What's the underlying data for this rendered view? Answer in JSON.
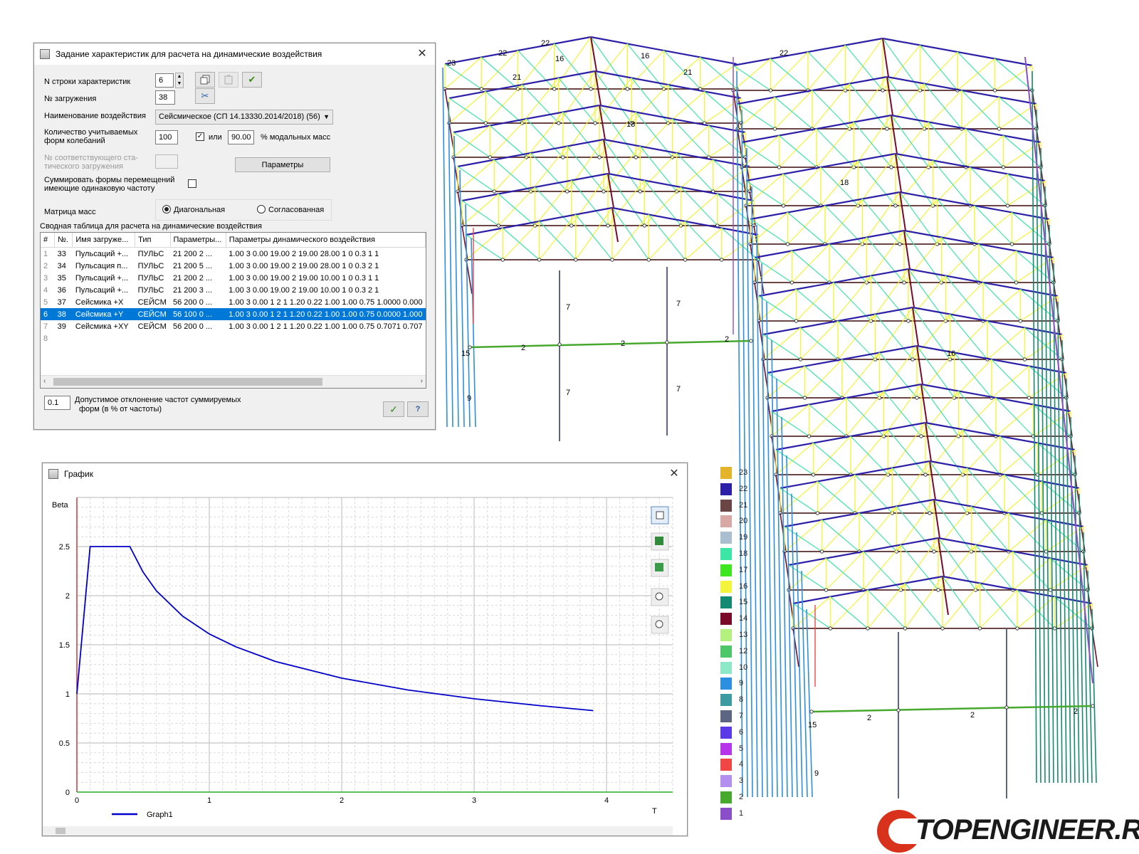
{
  "dialog": {
    "title": "Задание характеристик для расчета на динамические воздействия",
    "close_glyph": "✕",
    "row_label": "N строки характеристик",
    "row_value": "6",
    "load_label": "№ загружения",
    "load_value": "38",
    "effect_label": "Наименование воздействия",
    "effect_value": "Сейсмическое (СП 14.13330.2014/2018) (56)",
    "modes_label_1": "Количество учитываемых",
    "modes_label_2": "форм колебаний",
    "modes_value": "100",
    "or_checked": true,
    "or_label": "или",
    "modal_mass_value": "90.00",
    "modal_mass_label": "% модальных масс",
    "static_label_1": "№ соответствующего ста-",
    "static_label_2": "тического загружения",
    "static_value": "",
    "params_button": "Параметры",
    "sum_label_1": "Суммировать формы перемещений",
    "sum_label_2": "имеющие одинаковую частоту",
    "sum_checked": false,
    "mass_matrix_label": "Матрица масс",
    "radio_diagonal": "Диагональная",
    "radio_consistent": "Согласованная",
    "mass_matrix_selected": "diagonal",
    "table_caption": "Сводная таблица для расчета на динамические воздействия",
    "columns": [
      "#",
      "№.",
      "Имя загруже...",
      "Тип",
      "Параметры...",
      "Параметры динамического воздействия"
    ],
    "rows": [
      {
        "n": "1",
        "no": "33",
        "name": "Пульсаций +...",
        "type": "ПУЛЬС",
        "params": "21  200 2  ...",
        "dyn": "1.00 3 0.00 19.00 2 19.00 28.00 1 0 0.3 1 1"
      },
      {
        "n": "2",
        "no": "34",
        "name": "Пульсация п...",
        "type": "ПУЛЬС",
        "params": "21  200 5  ...",
        "dyn": "1.00 3 0.00 19.00 2 19.00 28.00 1 0 0.3 2 1"
      },
      {
        "n": "3",
        "no": "35",
        "name": "Пульсаций +...",
        "type": "ПУЛЬС",
        "params": "21  200 2  ...",
        "dyn": "1.00 3 0.00 19.00 2 19.00 10.00 1 0 0.3 1 1"
      },
      {
        "n": "4",
        "no": "36",
        "name": "Пульсаций +...",
        "type": "ПУЛЬС",
        "params": "21  200 3  ...",
        "dyn": "1.00 3 0.00 19.00 2 19.00 10.00 1 0 0.3 2 1"
      },
      {
        "n": "5",
        "no": "37",
        "name": "Сейсмика +X",
        "type": "СЕЙСМ",
        "params": "56  200 0  ...",
        "dyn": "1.00 3 0.00 1 2 1 1.20 0.22 1.00 1.00 0.75 1.0000 0.000"
      },
      {
        "n": "6",
        "no": "38",
        "name": "Сейсмика +Y",
        "type": "СЕЙСМ",
        "params": "56  100 0  ...",
        "dyn": "1.00 3 0.00 1 2 1 1.20 0.22 1.00 1.00 0.75 0.0000 1.000"
      },
      {
        "n": "7",
        "no": "39",
        "name": "Сейсмика +XY",
        "type": "СЕЙСМ",
        "params": "56  200 0  ...",
        "dyn": "1.00 3 0.00 1 2 1 1.20 0.22 1.00 1.00 0.75 0.7071 0.707"
      },
      {
        "n": "8",
        "no": "",
        "name": "",
        "type": "",
        "params": "",
        "dyn": ""
      }
    ],
    "selected_row": 5,
    "tolerance_value": "0.1",
    "tolerance_label_1": "Допустимое отклонение частот суммируемых",
    "tolerance_label_2": "форм (в % от частоты)",
    "ok_glyph": "✓",
    "help_glyph": "?"
  },
  "graph_window": {
    "title": "График",
    "close_glyph": "✕"
  },
  "chart_data": {
    "type": "line",
    "title": "",
    "ylabel": "Beta",
    "xlabel": "T",
    "xlim": [
      0,
      4.5
    ],
    "ylim": [
      0,
      3.0
    ],
    "x_ticks": [
      "0",
      "1",
      "2",
      "3",
      "4"
    ],
    "y_ticks": [
      "0",
      "0.5",
      "1",
      "1.5",
      "2",
      "2.5"
    ],
    "grid": true,
    "legend_position": "bottom-left",
    "series": [
      {
        "name": "Graph1",
        "color": "#0000c8",
        "x": [
          0,
          0.1,
          0.4,
          0.5,
          0.6,
          0.8,
          1.0,
          1.2,
          1.5,
          2.0,
          2.5,
          3.0,
          3.5,
          3.9
        ],
        "y": [
          1.0,
          2.5,
          2.5,
          2.24,
          2.05,
          1.79,
          1.61,
          1.48,
          1.33,
          1.16,
          1.04,
          0.95,
          0.88,
          0.83
        ]
      }
    ]
  },
  "legend": [
    {
      "label": "23",
      "color": "#e3b42a"
    },
    {
      "label": "22",
      "color": "#2c1fa8"
    },
    {
      "label": "21",
      "color": "#6b4545"
    },
    {
      "label": "20",
      "color": "#d7a8a4"
    },
    {
      "label": "19",
      "color": "#a9bfd0"
    },
    {
      "label": "18",
      "color": "#3ee6a5"
    },
    {
      "label": "17",
      "color": "#3de61f"
    },
    {
      "label": "16",
      "color": "#f4f43c"
    },
    {
      "label": "15",
      "color": "#148a73"
    },
    {
      "label": "14",
      "color": "#7a0a2a"
    },
    {
      "label": "13",
      "color": "#b4f07e"
    },
    {
      "label": "12",
      "color": "#4ec76b"
    },
    {
      "label": "10",
      "color": "#8de8c7"
    },
    {
      "label": "9",
      "color": "#2d8fe0"
    },
    {
      "label": "8",
      "color": "#3c9aa0"
    },
    {
      "label": "7",
      "color": "#5c6582"
    },
    {
      "label": "6",
      "color": "#5b3ae8"
    },
    {
      "label": "5",
      "color": "#b735e8"
    },
    {
      "label": "4",
      "color": "#f04646"
    },
    {
      "label": "3",
      "color": "#b38ff0"
    },
    {
      "label": "2",
      "color": "#47a82e"
    },
    {
      "label": "1",
      "color": "#8a4fc8"
    }
  ],
  "model": {
    "front_column_labels": [
      "7",
      "7",
      "7",
      "7"
    ],
    "strut_labels": [
      "2",
      "2",
      "2",
      "2",
      "2",
      "2"
    ],
    "top_labels": [
      "22",
      "22",
      "16",
      "16",
      "21",
      "21",
      "18",
      "18",
      "22",
      "16"
    ],
    "side_labels": [
      "15",
      "15",
      "9",
      "9",
      "23"
    ]
  },
  "logo": {
    "text": "TOPENGINEER.RU"
  }
}
